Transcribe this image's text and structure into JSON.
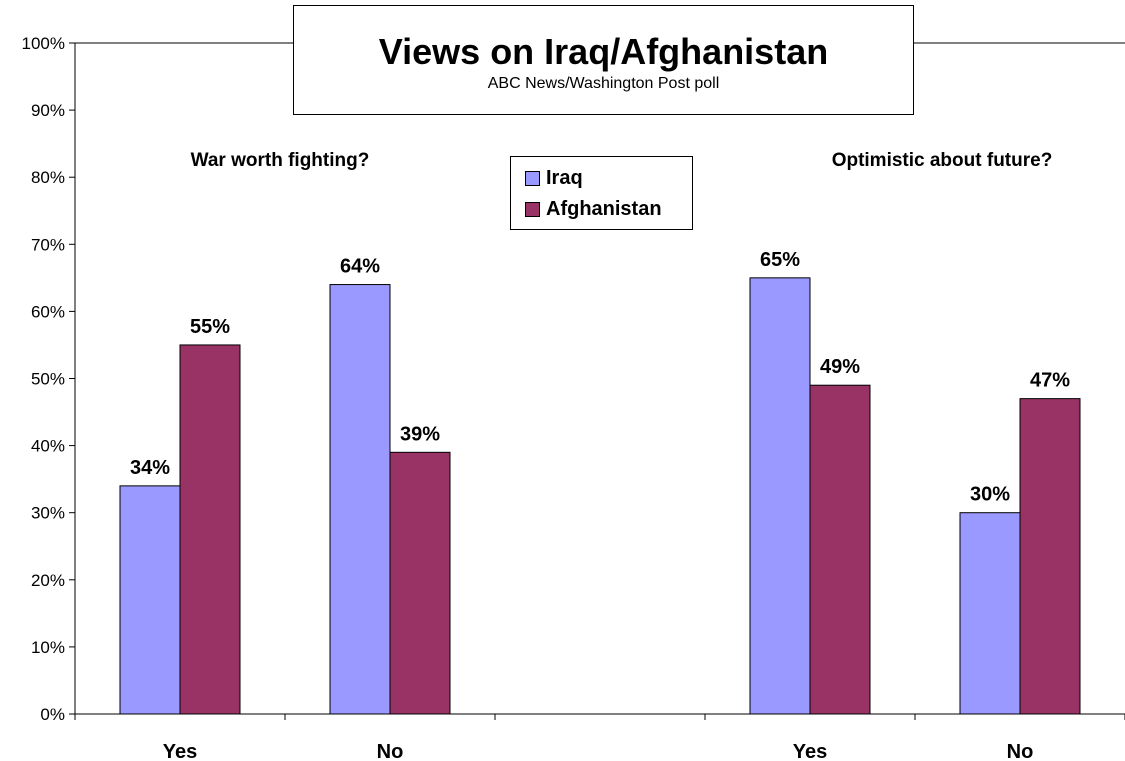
{
  "chart_data": {
    "type": "bar",
    "title": "Views on Iraq/Afghanistan",
    "subtitle": "ABC News/Washington Post poll",
    "y_ticks": [
      "0%",
      "10%",
      "20%",
      "30%",
      "40%",
      "50%",
      "60%",
      "70%",
      "80%",
      "90%",
      "100%"
    ],
    "ylim": [
      0,
      100
    ],
    "grid": false,
    "legend_position": "top-center",
    "groups": [
      {
        "title": "War worth fighting?",
        "categories": [
          "Yes",
          "No"
        ]
      },
      {
        "title": "Optimistic about future?",
        "categories": [
          "Yes",
          "No"
        ]
      }
    ],
    "categories": [
      "Yes",
      "No",
      "",
      "Yes",
      "No"
    ],
    "series": [
      {
        "name": "Iraq",
        "color": "#9999FF",
        "values": [
          34,
          64,
          null,
          65,
          30
        ],
        "labels": [
          "34%",
          "64%",
          "",
          "65%",
          "30%"
        ]
      },
      {
        "name": "Afghanistan",
        "color": "#993366",
        "values": [
          55,
          39,
          null,
          49,
          47
        ],
        "labels": [
          "55%",
          "39%",
          "",
          "49%",
          "47%"
        ]
      }
    ]
  }
}
